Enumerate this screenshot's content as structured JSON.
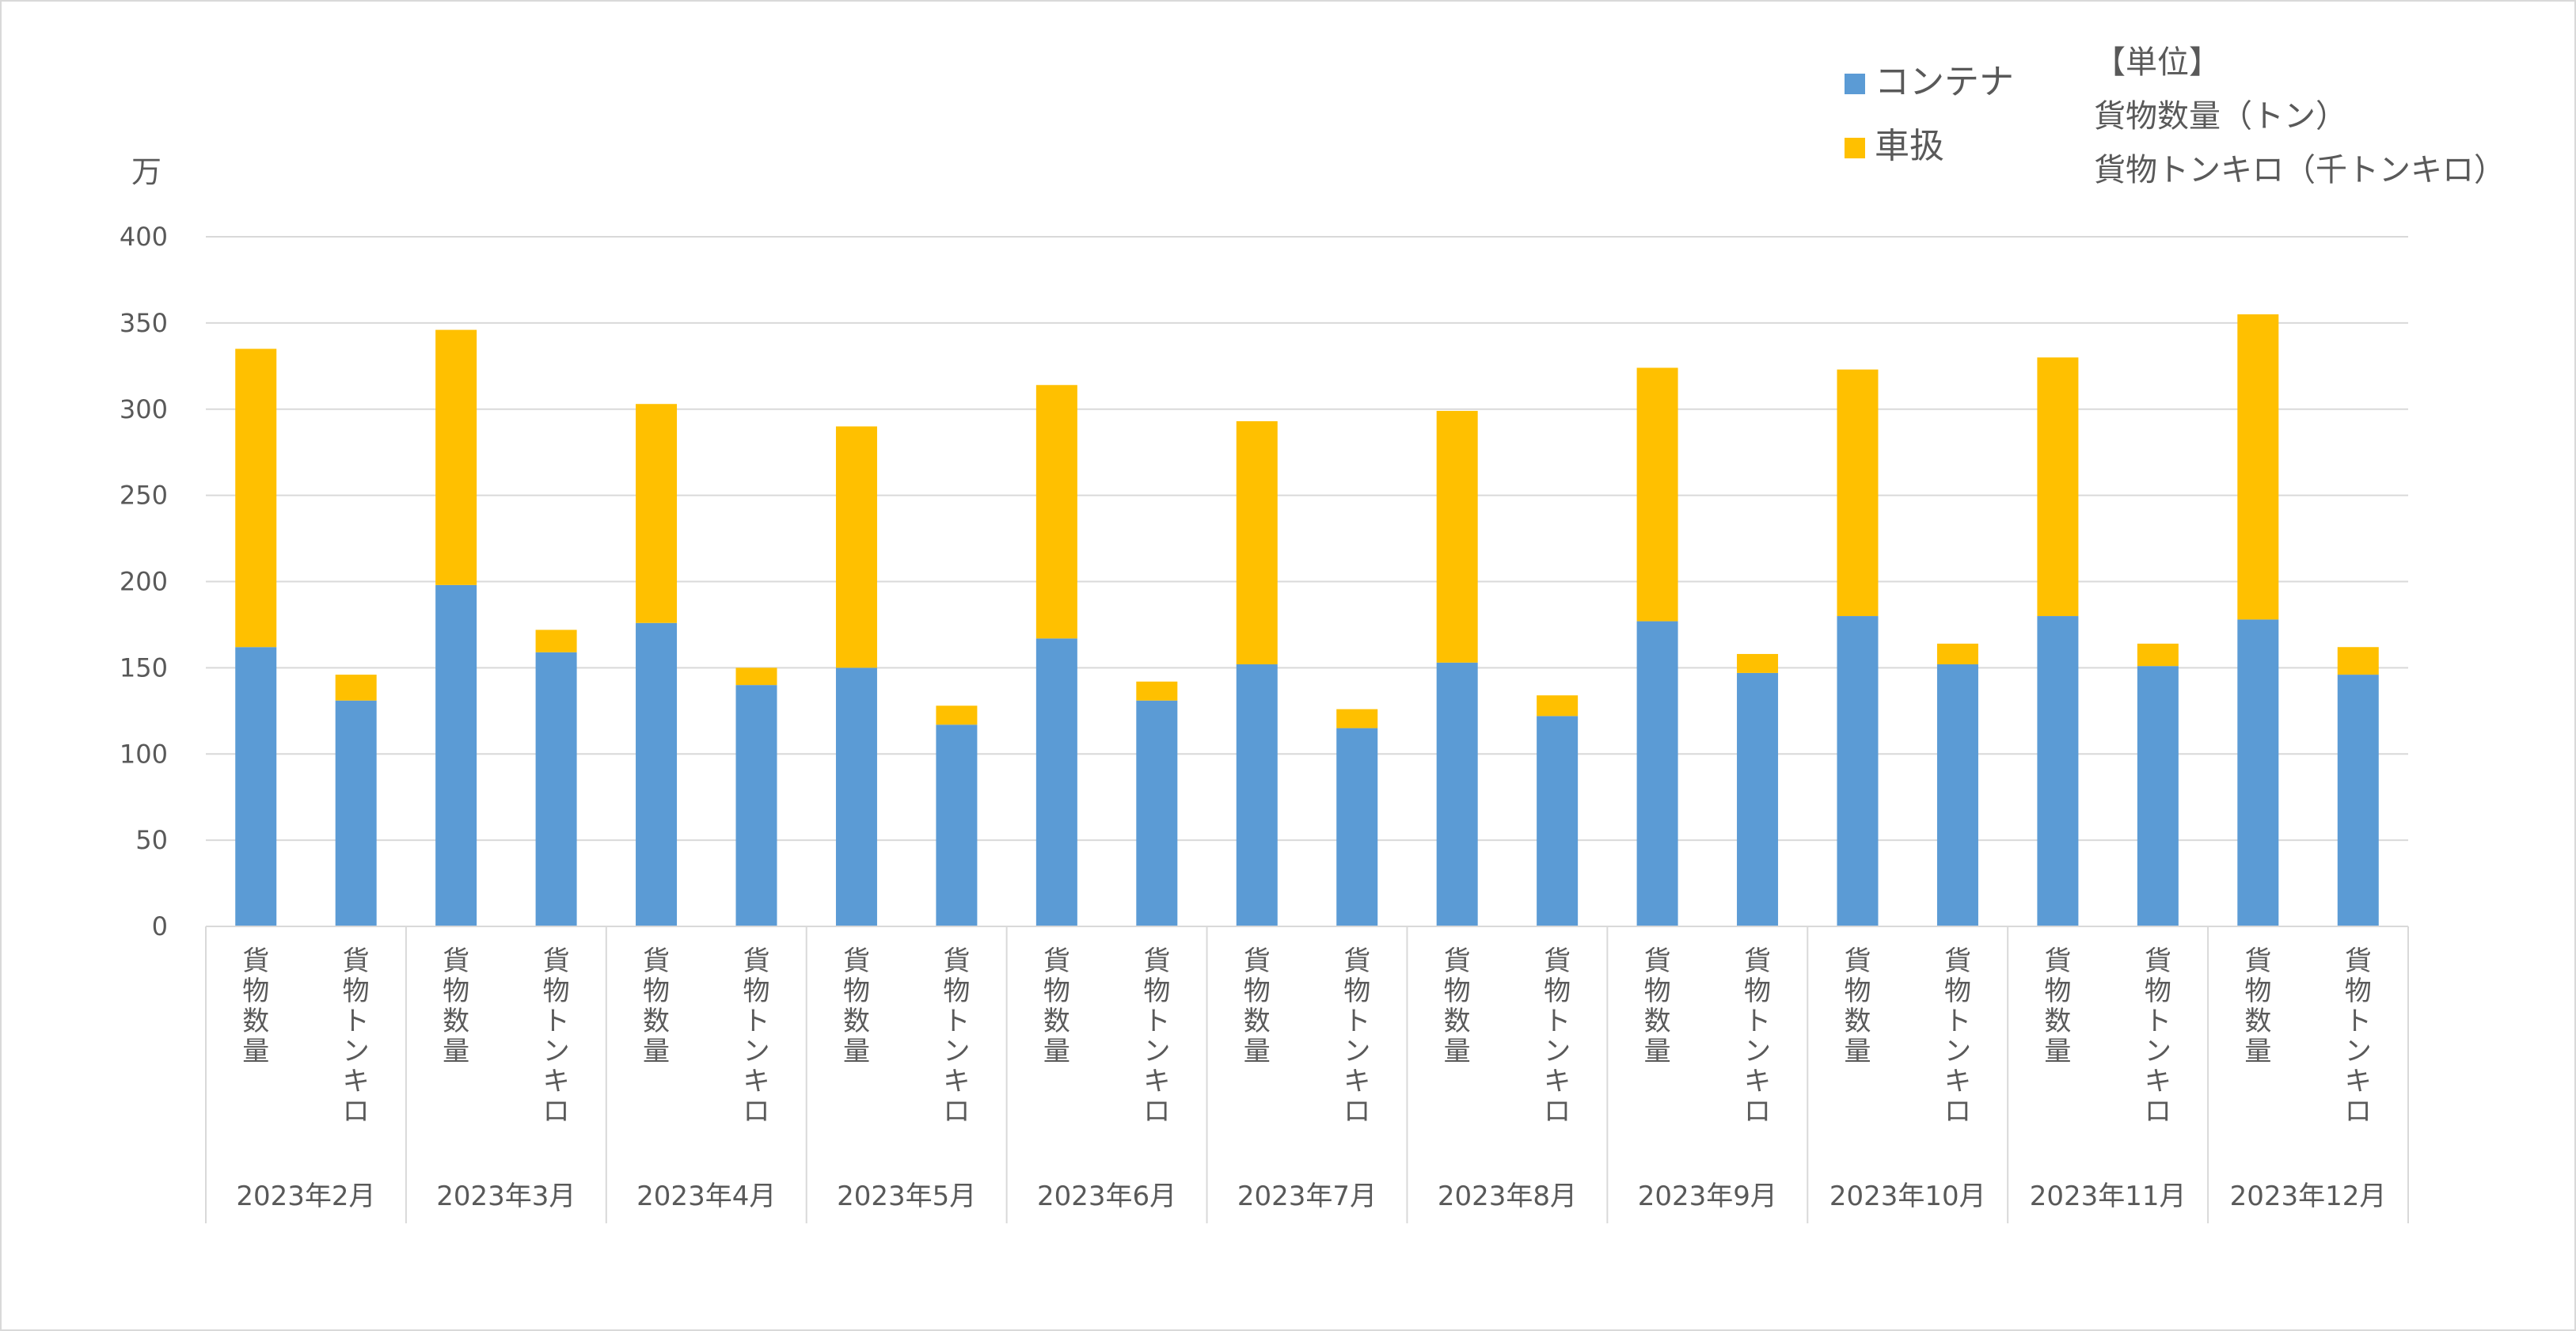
{
  "chart_data": {
    "type": "bar",
    "stacked": true,
    "y_unit_label": "万",
    "ylim": [
      0,
      400
    ],
    "yticks": [
      0,
      50,
      100,
      150,
      200,
      250,
      300,
      350,
      400
    ],
    "grid": true,
    "legend_position": "top-right",
    "months": [
      "2023年2月",
      "2023年3月",
      "2023年4月",
      "2023年5月",
      "2023年6月",
      "2023年7月",
      "2023年8月",
      "2023年9月",
      "2023年10月",
      "2023年11月",
      "2023年12月"
    ],
    "sub_categories": [
      "貨物数量",
      "貨物トンキロ"
    ],
    "series": [
      {
        "name": "コンテナ",
        "color": "#5b9bd5",
        "values": [
          [
            162,
            131
          ],
          [
            198,
            159
          ],
          [
            176,
            140
          ],
          [
            150,
            117
          ],
          [
            167,
            131
          ],
          [
            152,
            115
          ],
          [
            153,
            122
          ],
          [
            177,
            147
          ],
          [
            180,
            152
          ],
          [
            180,
            151
          ],
          [
            178,
            146
          ]
        ]
      },
      {
        "name": "車扱",
        "color": "#ffc000",
        "values": [
          [
            173,
            15
          ],
          [
            148,
            13
          ],
          [
            127,
            10
          ],
          [
            140,
            11
          ],
          [
            147,
            11
          ],
          [
            141,
            11
          ],
          [
            146,
            12
          ],
          [
            147,
            11
          ],
          [
            143,
            12
          ],
          [
            150,
            13
          ],
          [
            177,
            16
          ]
        ]
      }
    ],
    "units_note": {
      "heading": "【単位】",
      "lines": [
        "貨物数量（トン）",
        "貨物トンキロ（千トンキロ）"
      ]
    }
  }
}
